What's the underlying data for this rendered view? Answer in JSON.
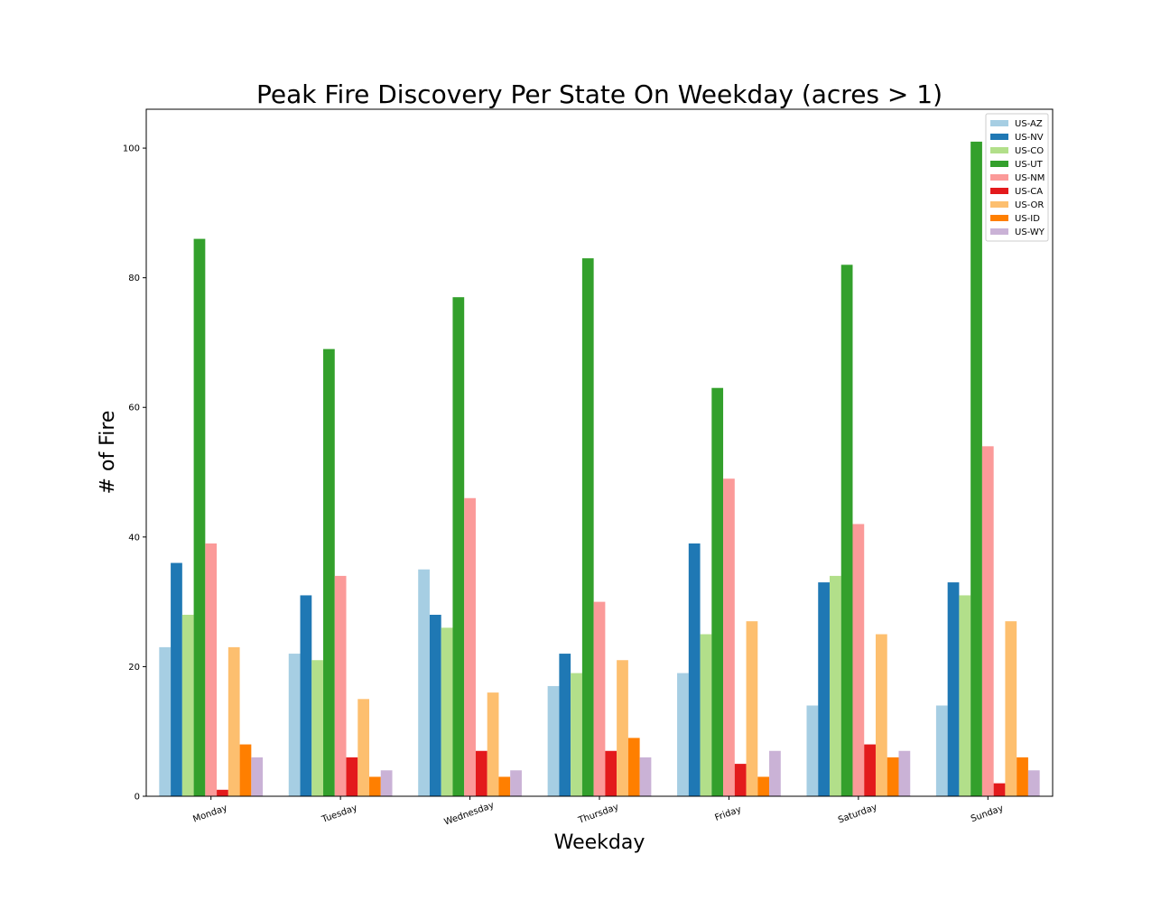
{
  "chart_data": {
    "type": "bar",
    "title": "Peak Fire Discovery Per State On Weekday (acres > 1)",
    "xlabel": "Weekday",
    "ylabel": "# of Fire",
    "categories": [
      "Monday",
      "Tuesday",
      "Wednesday",
      "Thursday",
      "Friday",
      "Saturday",
      "Sunday"
    ],
    "yticks": [
      0,
      20,
      40,
      60,
      80,
      100
    ],
    "ylim": [
      0,
      106
    ],
    "grid": false,
    "legend_position": "top-right",
    "series": [
      {
        "name": "US-AZ",
        "color": "#a6cee3",
        "values": [
          23,
          22,
          35,
          17,
          19,
          14,
          14
        ]
      },
      {
        "name": "US-NV",
        "color": "#1f78b4",
        "values": [
          36,
          31,
          28,
          22,
          39,
          33,
          33
        ]
      },
      {
        "name": "US-CO",
        "color": "#b2df8a",
        "values": [
          28,
          21,
          26,
          19,
          25,
          34,
          31
        ]
      },
      {
        "name": "US-UT",
        "color": "#33a02c",
        "values": [
          86,
          69,
          77,
          83,
          63,
          82,
          101
        ]
      },
      {
        "name": "US-NM",
        "color": "#fb9a99",
        "values": [
          39,
          34,
          46,
          30,
          49,
          42,
          54
        ]
      },
      {
        "name": "US-CA",
        "color": "#e31a1c",
        "values": [
          1,
          6,
          7,
          7,
          5,
          8,
          2
        ]
      },
      {
        "name": "US-OR",
        "color": "#fdbf6f",
        "values": [
          23,
          15,
          16,
          21,
          27,
          25,
          27
        ]
      },
      {
        "name": "US-ID",
        "color": "#ff7f00",
        "values": [
          8,
          3,
          3,
          9,
          3,
          6,
          6
        ]
      },
      {
        "name": "US-WY",
        "color": "#cab2d6",
        "values": [
          6,
          4,
          4,
          6,
          7,
          7,
          4
        ]
      }
    ]
  }
}
